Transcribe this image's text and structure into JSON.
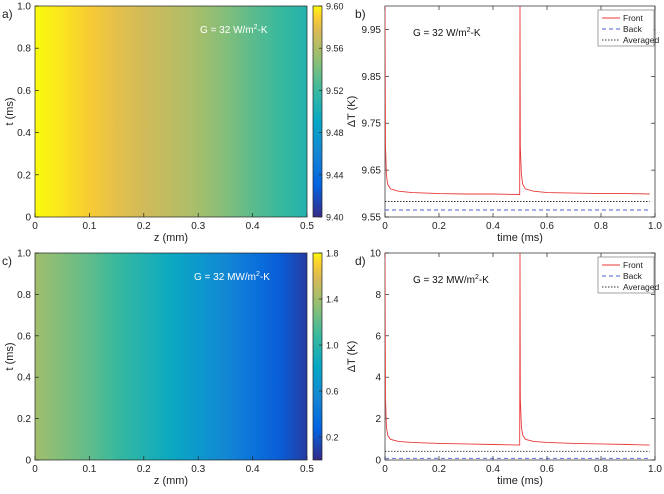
{
  "chart_data": [
    {
      "panel": "a)",
      "type": "heatmap",
      "annotation": "G = 32 W/m²-K",
      "xlabel": "z (mm)",
      "ylabel": "t (ms)",
      "xlim": [
        0,
        0.5
      ],
      "ylim": [
        0,
        1.0
      ],
      "xticks": [
        "0",
        "0.1",
        "0.2",
        "0.3",
        "0.4",
        "0.5"
      ],
      "yticks": [
        "0",
        "0.2",
        "0.4",
        "0.6",
        "0.8",
        "1.0"
      ],
      "colorbar": {
        "ticks": [
          "9.40",
          "9.44",
          "9.48",
          "9.52",
          "9.56",
          "9.60"
        ],
        "range": [
          9.4,
          9.6
        ]
      },
      "z": [
        0,
        0.05,
        0.1,
        0.15,
        0.2,
        0.25,
        0.3,
        0.35,
        0.4,
        0.45,
        0.5
      ],
      "values": [
        9.6,
        9.595,
        9.588,
        9.58,
        9.573,
        9.566,
        9.557,
        9.545,
        9.532,
        9.52,
        9.508
      ]
    },
    {
      "panel": "b)",
      "type": "line",
      "annotation": "G = 32  W/m²-K",
      "xlabel": "time (ms)",
      "ylabel": "ΔT  (K)",
      "xlim": [
        0,
        1.0
      ],
      "ylim": [
        9.55,
        10.0
      ],
      "xticks": [
        "0",
        "0.2",
        "0.4",
        "0.6",
        "0.8",
        "1.0"
      ],
      "yticks": [
        "9.55",
        "9.65",
        "9.75",
        "9.85",
        "9.95"
      ],
      "legend_position": "top-right",
      "series": [
        {
          "name": "Front",
          "color": "#e83a3a",
          "style": "solid",
          "x": [
            0,
            0.002,
            0.005,
            0.01,
            0.02,
            0.05,
            0.1,
            0.2,
            0.3,
            0.4,
            0.499,
            0.5,
            0.501,
            0.505,
            0.51,
            0.52,
            0.55,
            0.6,
            0.7,
            0.8,
            0.9,
            0.98
          ],
          "y": [
            10.0,
            9.7,
            9.64,
            9.62,
            9.61,
            9.605,
            9.602,
            9.6,
            9.599,
            9.599,
            9.598,
            10.0,
            9.7,
            9.64,
            9.62,
            9.61,
            9.605,
            9.602,
            9.601,
            9.6,
            9.6,
            9.599
          ]
        },
        {
          "name": "Back",
          "color": "#4a5fd6",
          "style": "dashed",
          "x": [
            0,
            0.98
          ],
          "y": [
            9.565,
            9.565
          ]
        },
        {
          "name": "Averaged",
          "color": "#333333",
          "style": "dotted",
          "x": [
            0,
            0.98
          ],
          "y": [
            9.583,
            9.583
          ]
        }
      ]
    },
    {
      "panel": "c)",
      "type": "heatmap",
      "annotation": "G = 32 MW/m²-K",
      "xlabel": "z (mm)",
      "ylabel": "t (ms)",
      "xlim": [
        0,
        0.5
      ],
      "ylim": [
        0,
        1.0
      ],
      "xticks": [
        "0",
        "0.1",
        "0.2",
        "0.3",
        "0.4",
        "0.5"
      ],
      "yticks": [
        "0",
        "0.2",
        "0.4",
        "0.6",
        "0.8",
        "1.0"
      ],
      "colorbar": {
        "ticks": [
          "0.2",
          "0.6",
          "1.0",
          "1.4",
          "1.8"
        ],
        "range": [
          0.0,
          1.8
        ]
      },
      "z": [
        0,
        0.05,
        0.1,
        0.15,
        0.2,
        0.25,
        0.3,
        0.35,
        0.4,
        0.45,
        0.5
      ],
      "values": [
        1.4,
        1.3,
        1.2,
        1.08,
        0.96,
        0.84,
        0.7,
        0.56,
        0.4,
        0.24,
        0.08
      ]
    },
    {
      "panel": "d)",
      "type": "line",
      "annotation": "G = 32  MW/m²-K",
      "xlabel": "time (ms)",
      "ylabel": "ΔT  (K)",
      "xlim": [
        0,
        1.0
      ],
      "ylim": [
        0,
        10
      ],
      "xticks": [
        "0",
        "0.2",
        "0.4",
        "0.6",
        "0.8",
        "1.0"
      ],
      "yticks": [
        "0",
        "2",
        "4",
        "6",
        "8",
        "10"
      ],
      "legend_position": "top-right",
      "series": [
        {
          "name": "Front",
          "color": "#e83a3a",
          "style": "solid",
          "x": [
            0,
            0.002,
            0.005,
            0.01,
            0.02,
            0.05,
            0.1,
            0.2,
            0.3,
            0.4,
            0.499,
            0.5,
            0.501,
            0.505,
            0.51,
            0.52,
            0.55,
            0.6,
            0.7,
            0.8,
            0.9,
            0.98
          ],
          "y": [
            10.0,
            3.0,
            1.6,
            1.2,
            1.0,
            0.9,
            0.85,
            0.8,
            0.78,
            0.75,
            0.72,
            10.0,
            3.0,
            1.6,
            1.2,
            1.0,
            0.9,
            0.85,
            0.8,
            0.78,
            0.75,
            0.72
          ]
        },
        {
          "name": "Back",
          "color": "#4a5fd6",
          "style": "dashed",
          "x": [
            0,
            0.98
          ],
          "y": [
            0.08,
            0.08
          ]
        },
        {
          "name": "Averaged",
          "color": "#333333",
          "style": "dotted",
          "x": [
            0,
            0.98
          ],
          "y": [
            0.42,
            0.42
          ]
        }
      ]
    }
  ]
}
